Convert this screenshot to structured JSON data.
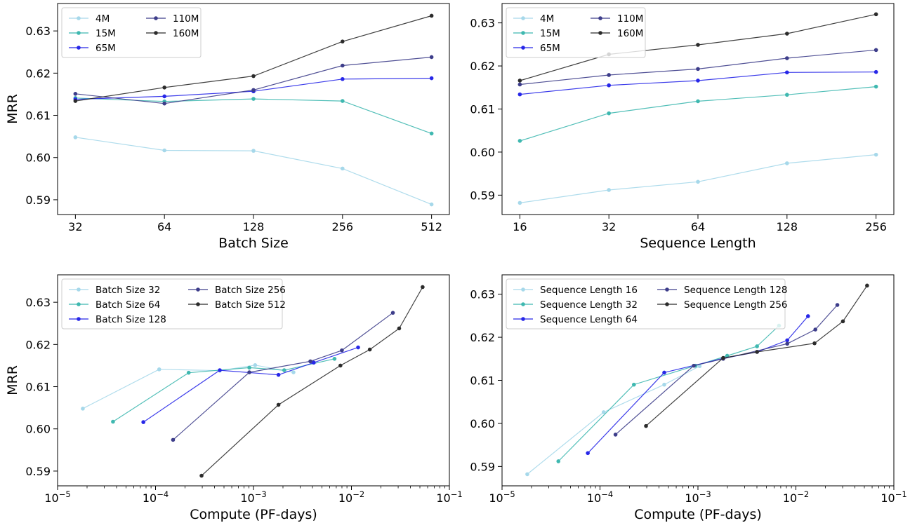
{
  "colors": {
    "c1": "#a6d8ea",
    "c2": "#3fb8b0",
    "c3": "#2727e8",
    "c4": "#3d3d8a",
    "c5": "#2b2b2b"
  },
  "chart_data": [
    {
      "id": "batch",
      "type": "line",
      "xscale": "log2",
      "xlabel": "Batch Size",
      "ylabel": "MRR",
      "x": [
        32,
        64,
        128,
        256,
        512
      ],
      "xticks": [
        "32",
        "64",
        "128",
        "256",
        "512"
      ],
      "ylim": [
        0.5865,
        0.6365
      ],
      "yticks": [
        0.59,
        0.6,
        0.61,
        0.62,
        0.63
      ],
      "ytick_labels": [
        "0.59",
        "0.60",
        "0.61",
        "0.62",
        "0.63"
      ],
      "legend_position": "top-left",
      "series": [
        {
          "name": "4M",
          "color": "#a6d8ea",
          "y": [
            0.6048,
            0.6017,
            0.6016,
            0.5974,
            0.5889
          ]
        },
        {
          "name": "15M",
          "color": "#3fb8b0",
          "y": [
            0.6141,
            0.6133,
            0.6139,
            0.6134,
            0.6057
          ]
        },
        {
          "name": "65M",
          "color": "#2727e8",
          "y": [
            0.6138,
            0.6145,
            0.6157,
            0.6186,
            0.6188
          ]
        },
        {
          "name": "110M",
          "color": "#3d3d8a",
          "y": [
            0.6151,
            0.6128,
            0.616,
            0.6218,
            0.6238
          ]
        },
        {
          "name": "160M",
          "color": "#2b2b2b",
          "y": [
            0.6134,
            0.6166,
            0.6193,
            0.6275,
            0.6336
          ]
        }
      ]
    },
    {
      "id": "seqlen",
      "type": "line",
      "xscale": "log2",
      "xlabel": "Sequence Length",
      "ylabel": "",
      "x": [
        16,
        32,
        64,
        128,
        256
      ],
      "xticks": [
        "16",
        "32",
        "64",
        "128",
        "256"
      ],
      "ylim": [
        0.5855,
        0.6345
      ],
      "yticks": [
        0.59,
        0.6,
        0.61,
        0.62,
        0.63
      ],
      "ytick_labels": [
        "0.59",
        "0.60",
        "0.61",
        "0.62",
        "0.63"
      ],
      "legend_position": "top-left",
      "series": [
        {
          "name": "4M",
          "color": "#a6d8ea",
          "y": [
            0.5882,
            0.5912,
            0.5931,
            0.5974,
            0.5994
          ]
        },
        {
          "name": "15M",
          "color": "#3fb8b0",
          "y": [
            0.6026,
            0.609,
            0.6118,
            0.6133,
            0.6152
          ]
        },
        {
          "name": "65M",
          "color": "#2727e8",
          "y": [
            0.6134,
            0.6155,
            0.6166,
            0.6185,
            0.6186
          ]
        },
        {
          "name": "110M",
          "color": "#3d3d8a",
          "y": [
            0.6157,
            0.6179,
            0.6193,
            0.6218,
            0.6237
          ]
        },
        {
          "name": "160M",
          "color": "#2b2b2b",
          "y": [
            0.6166,
            0.6227,
            0.6249,
            0.6275,
            0.632
          ]
        }
      ]
    },
    {
      "id": "compute-batch",
      "type": "line",
      "xscale": "log10",
      "xlabel": "Compute (PF-days)",
      "ylabel": "MRR",
      "xlim": [
        1e-05,
        0.1
      ],
      "xtick_exponents": [
        "-5",
        "-4",
        "-3",
        "-2",
        "-1"
      ],
      "ylim": [
        0.5865,
        0.6365
      ],
      "yticks": [
        0.59,
        0.6,
        0.61,
        0.62,
        0.63
      ],
      "ytick_labels": [
        "0.59",
        "0.60",
        "0.61",
        "0.62",
        "0.63"
      ],
      "legend_position": "top-left",
      "series": [
        {
          "name": "Batch Size 32",
          "color": "#a6d8ea",
          "x": [
            1.81e-05,
            0.000109,
            0.000453,
            0.00104,
            0.00256
          ],
          "y": [
            0.6048,
            0.6141,
            0.6138,
            0.6151,
            0.6134
          ]
        },
        {
          "name": "Batch Size 64",
          "color": "#3fb8b0",
          "x": [
            3.68e-05,
            0.000218,
            0.000907,
            0.00206,
            0.00672
          ],
          "y": [
            0.6017,
            0.6133,
            0.6145,
            0.6139,
            0.6166
          ]
        },
        {
          "name": "Batch Size 128",
          "color": "#2727e8",
          "x": [
            7.51e-05,
            0.000453,
            0.0018,
            0.00412,
            0.0117
          ],
          "y": [
            0.6016,
            0.6139,
            0.6128,
            0.6157,
            0.6193
          ]
        },
        {
          "name": "Batch Size 256",
          "color": "#3d3d8a",
          "x": [
            0.000151,
            0.000907,
            0.00381,
            0.00799,
            0.0265
          ],
          "y": [
            0.5974,
            0.6134,
            0.616,
            0.6186,
            0.6275
          ]
        },
        {
          "name": "Batch Size 512",
          "color": "#2b2b2b",
          "x": [
            0.000295,
            0.0018,
            0.00772,
            0.0154,
            0.0307,
            0.0533
          ],
          "y": [
            0.5889,
            0.6057,
            0.615,
            0.6188,
            0.6238,
            0.6336
          ]
        }
      ]
    },
    {
      "id": "compute-seqlen",
      "type": "line",
      "xscale": "log10",
      "xlabel": "Compute (PF-days)",
      "ylabel": "",
      "xlim": [
        1e-05,
        0.1
      ],
      "xtick_exponents": [
        "-5",
        "-4",
        "-3",
        "-2",
        "-1"
      ],
      "ylim": [
        0.5855,
        0.6345
      ],
      "yticks": [
        0.59,
        0.6,
        0.61,
        0.62,
        0.63
      ],
      "ytick_labels": [
        "0.59",
        "0.60",
        "0.61",
        "0.62",
        "0.63"
      ],
      "legend_position": "top-left",
      "series": [
        {
          "name": "Sequence Length 16",
          "color": "#a6d8ea",
          "x": [
            1.81e-05,
            0.000109,
            0.000453,
            0.00104
          ],
          "y": [
            0.5882,
            0.6026,
            0.609,
            0.6133
          ]
        },
        {
          "name": "Sequence Length 32",
          "color": "#3fb8b0",
          "x": [
            3.76e-05,
            0.000222,
            0.000943,
            0.00199,
            0.00401,
            0.00672
          ],
          "y": [
            0.5912,
            0.609,
            0.6134,
            0.6157,
            0.6179,
            0.6227
          ]
        },
        {
          "name": "Sequence Length 64",
          "color": "#2727e8",
          "x": [
            7.51e-05,
            0.000453,
            0.00181,
            0.00401,
            0.00816,
            0.0133
          ],
          "y": [
            0.5931,
            0.6118,
            0.6151,
            0.6166,
            0.6193,
            0.6249
          ]
        },
        {
          "name": "Sequence Length 128",
          "color": "#3d3d8a",
          "x": [
            0.000144,
            0.000907,
            0.00181,
            0.00816,
            0.0158,
            0.0265
          ],
          "y": [
            0.5974,
            0.6134,
            0.615,
            0.6185,
            0.6218,
            0.6275
          ]
        },
        {
          "name": "Sequence Length 256",
          "color": "#2b2b2b",
          "x": [
            0.000295,
            0.00181,
            0.00401,
            0.0155,
            0.0302,
            0.0533
          ],
          "y": [
            0.5994,
            0.6152,
            0.6166,
            0.6186,
            0.6237,
            0.632
          ]
        }
      ]
    }
  ]
}
